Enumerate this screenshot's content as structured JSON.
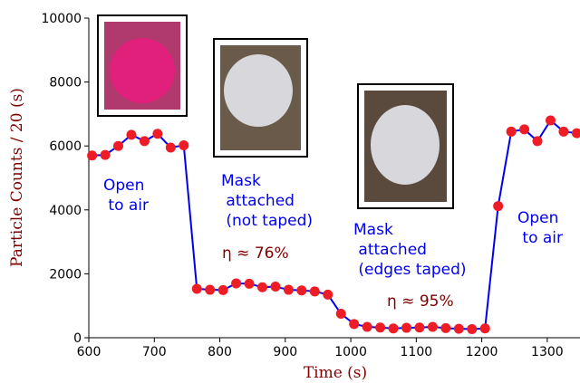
{
  "chart_data": {
    "type": "line",
    "xlabel": "Time (s)",
    "ylabel": "Particle Counts / 20 (s)",
    "x": [
      605,
      625,
      645,
      665,
      685,
      705,
      725,
      745,
      765,
      785,
      805,
      825,
      845,
      865,
      885,
      905,
      925,
      945,
      965,
      985,
      1005,
      1025,
      1045,
      1065,
      1085,
      1105,
      1125,
      1145,
      1165,
      1185,
      1205,
      1225,
      1245,
      1265,
      1285,
      1305,
      1325,
      1345
    ],
    "series": [
      {
        "color": "#0000ee",
        "marker_color": "#ee1c25",
        "values": [
          5700,
          5720,
          6000,
          6350,
          6150,
          6380,
          5950,
          6020,
          1530,
          1500,
          1490,
          1700,
          1690,
          1580,
          1600,
          1500,
          1480,
          1450,
          1350,
          750,
          430,
          340,
          320,
          290,
          310,
          320,
          340,
          300,
          280,
          270,
          290,
          4120,
          6450,
          6520,
          6150,
          6800,
          6450,
          6400
        ]
      }
    ],
    "xlim": [
      600,
      1350
    ],
    "ylim": [
      0,
      10000
    ],
    "xticks": [
      600,
      700,
      800,
      900,
      1000,
      1100,
      1200,
      1300
    ],
    "yticks": [
      0,
      2000,
      4000,
      6000,
      8000,
      10000
    ],
    "annotations": [
      {
        "lines": [
          "Open",
          " to air"
        ],
        "color": "#0000ee"
      },
      {
        "lines": [
          "Mask",
          " attached",
          "  (not taped)"
        ],
        "color": "#0000ee"
      },
      {
        "lines": [
          "η ≈ 76%"
        ],
        "color": "#800000"
      },
      {
        "lines": [
          "Mask",
          " attached",
          "  (edges taped)"
        ],
        "color": "#0000ee"
      },
      {
        "lines": [
          "η ≈ 95%"
        ],
        "color": "#800000"
      },
      {
        "lines": [
          "Open",
          " to air"
        ],
        "color": "#0000ee"
      }
    ]
  }
}
